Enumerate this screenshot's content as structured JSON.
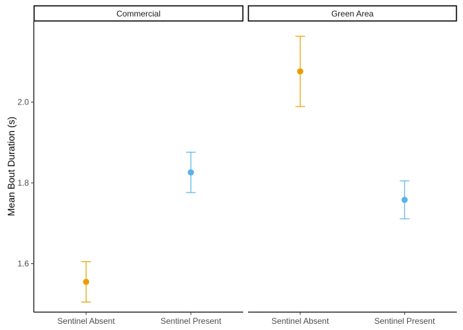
{
  "chart_data": {
    "type": "scatter",
    "ylabel": "Mean Bout Duration (s)",
    "xlabel": "",
    "ylim": [
      1.48,
      2.2
    ],
    "yticks": [
      1.6,
      1.8,
      2.0
    ],
    "ytick_labels": [
      "1.6",
      "1.8",
      "2.0"
    ],
    "categories": [
      "Sentinel Absent",
      "Sentinel Present"
    ],
    "colors": {
      "Sentinel Absent": "#E69F00",
      "Sentinel Present": "#56B4E9"
    },
    "grid": false,
    "legend": "none",
    "panels": [
      {
        "title": "Commercial",
        "points": [
          {
            "x": "Sentinel Absent",
            "y": 1.555,
            "lower": 1.505,
            "upper": 1.605
          },
          {
            "x": "Sentinel Present",
            "y": 1.826,
            "lower": 1.776,
            "upper": 1.876
          }
        ]
      },
      {
        "title": "Green Area",
        "points": [
          {
            "x": "Sentinel Absent",
            "y": 2.076,
            "lower": 1.989,
            "upper": 2.163
          },
          {
            "x": "Sentinel Present",
            "y": 1.758,
            "lower": 1.711,
            "upper": 1.805
          }
        ]
      }
    ]
  }
}
